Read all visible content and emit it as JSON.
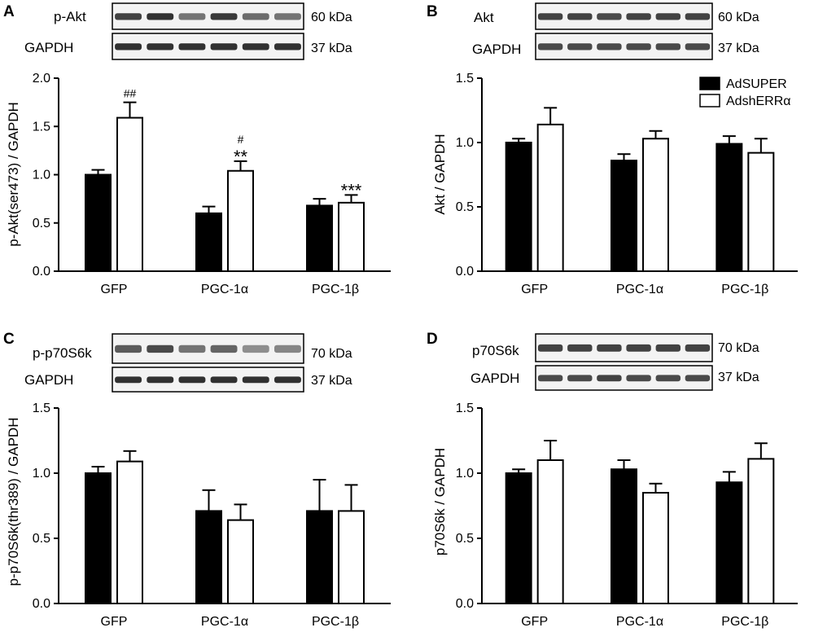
{
  "legend": [
    {
      "name": "AdSUPER",
      "fill": "#000000"
    },
    {
      "name": "AdshERRα",
      "fill": "#ffffff"
    }
  ],
  "panels": [
    {
      "letter": "A",
      "blots": [
        {
          "label": "p-Akt",
          "kda": "60 kDa",
          "lane_intensity": [
            0.85,
            0.95,
            0.55,
            0.9,
            0.6,
            0.55
          ]
        },
        {
          "label": "GAPDH",
          "kda": "37 kDa",
          "lane_intensity": [
            0.95,
            0.95,
            0.95,
            0.95,
            0.95,
            0.95
          ]
        }
      ]
    },
    {
      "letter": "B",
      "blots": [
        {
          "label": "Akt",
          "kda": "60 kDa",
          "lane_intensity": [
            0.85,
            0.85,
            0.8,
            0.85,
            0.85,
            0.85
          ]
        },
        {
          "label": "GAPDH",
          "kda": "37 kDa",
          "lane_intensity": [
            0.8,
            0.8,
            0.8,
            0.8,
            0.8,
            0.8
          ]
        }
      ]
    },
    {
      "letter": "C",
      "blots": [
        {
          "label": "p-p70S6k",
          "kda": "70 kDa",
          "lane_intensity": [
            0.7,
            0.8,
            0.55,
            0.65,
            0.4,
            0.45
          ]
        },
        {
          "label": "GAPDH",
          "kda": "37 kDa",
          "lane_intensity": [
            0.95,
            0.95,
            0.95,
            0.95,
            0.95,
            0.95
          ]
        }
      ]
    },
    {
      "letter": "D",
      "blots": [
        {
          "label": "p70S6k",
          "kda": "70 kDa",
          "lane_intensity": [
            0.85,
            0.85,
            0.85,
            0.85,
            0.85,
            0.85
          ]
        },
        {
          "label": "GAPDH",
          "kda": "37 kDa",
          "lane_intensity": [
            0.8,
            0.8,
            0.85,
            0.8,
            0.8,
            0.8
          ]
        }
      ]
    }
  ],
  "chart_data": [
    {
      "panel": "A",
      "type": "bar",
      "ylabel": "p-Akt(ser473) / GAPDH",
      "ylim": [
        0,
        2.0
      ],
      "yticks": [
        "0.0",
        "0.5",
        "1.0",
        "1.5",
        "2.0"
      ],
      "categories": [
        "GFP",
        "PGC-1α",
        "PGC-1β"
      ],
      "series": [
        {
          "name": "AdSUPER",
          "values": [
            1.0,
            0.6,
            0.68
          ],
          "errors": [
            0.05,
            0.07,
            0.07
          ]
        },
        {
          "name": "AdshERRα",
          "values": [
            1.59,
            1.04,
            0.71
          ],
          "errors": [
            0.16,
            0.1,
            0.08
          ]
        }
      ],
      "annotations": [
        {
          "category": 0,
          "series": 1,
          "lines": [
            "##"
          ]
        },
        {
          "category": 1,
          "series": 1,
          "lines": [
            "#",
            "**"
          ]
        },
        {
          "category": 2,
          "series": 1,
          "lines": [
            "***"
          ]
        }
      ]
    },
    {
      "panel": "B",
      "type": "bar",
      "ylabel": "Akt / GAPDH",
      "ylim": [
        0,
        1.5
      ],
      "yticks": [
        "0.0",
        "0.5",
        "1.0",
        "1.5"
      ],
      "categories": [
        "GFP",
        "PGC-1α",
        "PGC-1β"
      ],
      "series": [
        {
          "name": "AdSUPER",
          "values": [
            1.0,
            0.86,
            0.99
          ],
          "errors": [
            0.03,
            0.05,
            0.06
          ]
        },
        {
          "name": "AdshERRα",
          "values": [
            1.14,
            1.03,
            0.92
          ],
          "errors": [
            0.13,
            0.06,
            0.11
          ]
        }
      ],
      "annotations": []
    },
    {
      "panel": "C",
      "type": "bar",
      "ylabel": "p-p70S6k(thr389) / GAPDH",
      "ylim": [
        0,
        1.5
      ],
      "yticks": [
        "0.0",
        "0.5",
        "1.0",
        "1.5"
      ],
      "categories": [
        "GFP",
        "PGC-1α",
        "PGC-1β"
      ],
      "series": [
        {
          "name": "AdSUPER",
          "values": [
            1.0,
            0.71,
            0.71
          ],
          "errors": [
            0.05,
            0.16,
            0.24
          ]
        },
        {
          "name": "AdshERRα",
          "values": [
            1.09,
            0.64,
            0.71
          ],
          "errors": [
            0.08,
            0.12,
            0.2
          ]
        }
      ],
      "annotations": []
    },
    {
      "panel": "D",
      "type": "bar",
      "ylabel": "p70S6k / GAPDH",
      "ylim": [
        0,
        1.5
      ],
      "yticks": [
        "0.0",
        "0.5",
        "1.0",
        "1.5"
      ],
      "categories": [
        "GFP",
        "PGC-1α",
        "PGC-1β"
      ],
      "series": [
        {
          "name": "AdSUPER",
          "values": [
            1.0,
            1.03,
            0.93
          ],
          "errors": [
            0.03,
            0.07,
            0.08
          ]
        },
        {
          "name": "AdshERRα",
          "values": [
            1.1,
            0.85,
            1.11
          ],
          "errors": [
            0.15,
            0.07,
            0.12
          ]
        }
      ],
      "annotations": []
    }
  ]
}
